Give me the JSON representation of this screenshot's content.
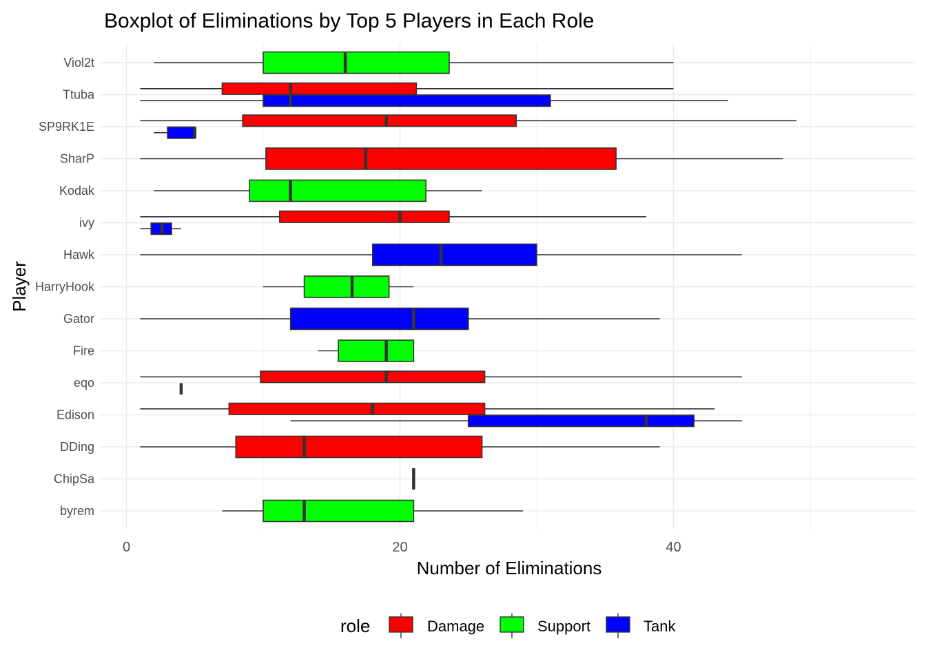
{
  "chart_data": {
    "type": "boxplot",
    "title": "Boxplot of Eliminations by Top 5 Players in Each Role",
    "xlabel": "Number of Eliminations",
    "ylabel": "Player",
    "xlim": [
      -0.5,
      57.5
    ],
    "xticks": [
      0,
      20,
      40
    ],
    "grid": true,
    "legend": {
      "title": "role",
      "position": "bottom"
    },
    "categories": [
      "Viol2t",
      "Ttuba",
      "SP9RK1E",
      "SharP",
      "Kodak",
      "ivy",
      "Hawk",
      "HarryHook",
      "Gator",
      "Fire",
      "eqo",
      "Edison",
      "DDing",
      "ChipSa",
      "byrem"
    ],
    "series": [
      {
        "name": "Damage",
        "color": "#ff0000",
        "boxes": [
          {
            "player": "Ttuba",
            "min": 1,
            "q1": 7,
            "median": 12,
            "q3": 21.2,
            "max": 40
          },
          {
            "player": "SP9RK1E",
            "min": 1,
            "q1": 8.5,
            "median": 19,
            "q3": 28.5,
            "max": 49
          },
          {
            "player": "SharP",
            "min": 1,
            "q1": 10.2,
            "median": 17.5,
            "q3": 35.8,
            "max": 48
          },
          {
            "player": "ivy",
            "min": 1,
            "q1": 11.2,
            "median": 20,
            "q3": 23.6,
            "max": 38
          },
          {
            "player": "eqo",
            "min": 1,
            "q1": 9.8,
            "median": 19,
            "q3": 26.2,
            "max": 45
          },
          {
            "player": "Edison",
            "min": 1,
            "q1": 7.5,
            "median": 18,
            "q3": 26.2,
            "max": 43
          },
          {
            "player": "DDing",
            "min": 1,
            "q1": 8,
            "median": 13,
            "q3": 26,
            "max": 39
          }
        ]
      },
      {
        "name": "Support",
        "color": "#00ff00",
        "boxes": [
          {
            "player": "Viol2t",
            "min": 2,
            "q1": 10,
            "median": 16,
            "q3": 23.6,
            "max": 40
          },
          {
            "player": "Kodak",
            "min": 2,
            "q1": 9,
            "median": 12,
            "q3": 21.9,
            "max": 26
          },
          {
            "player": "HarryHook",
            "min": 10,
            "q1": 13,
            "median": 16.5,
            "q3": 19.2,
            "max": 21
          },
          {
            "player": "Fire",
            "min": 14,
            "q1": 15.5,
            "median": 19,
            "q3": 21,
            "max": 21
          },
          {
            "player": "ChipSa",
            "min": 21,
            "q1": 21,
            "median": 21,
            "q3": 21,
            "max": 21
          },
          {
            "player": "byrem",
            "min": 7,
            "q1": 10,
            "median": 13,
            "q3": 21,
            "max": 29
          }
        ]
      },
      {
        "name": "Tank",
        "color": "#0000ff",
        "boxes": [
          {
            "player": "Ttuba",
            "min": 1,
            "q1": 10,
            "median": 12,
            "q3": 31,
            "max": 44
          },
          {
            "player": "SP9RK1E",
            "min": 2,
            "q1": 3,
            "median": 5,
            "q3": 5,
            "max": 5
          },
          {
            "player": "ivy",
            "min": 1,
            "q1": 1.8,
            "median": 2.6,
            "q3": 3.3,
            "max": 4
          },
          {
            "player": "Hawk",
            "min": 1,
            "q1": 18,
            "median": 23,
            "q3": 30,
            "max": 45
          },
          {
            "player": "Gator",
            "min": 1,
            "q1": 12,
            "median": 21,
            "q3": 25,
            "max": 39
          },
          {
            "player": "eqo",
            "min": 4,
            "q1": 4,
            "median": 4,
            "q3": 4,
            "max": 4
          },
          {
            "player": "Edison",
            "min": 12,
            "q1": 25,
            "median": 38,
            "q3": 41.5,
            "max": 45
          }
        ]
      }
    ]
  }
}
